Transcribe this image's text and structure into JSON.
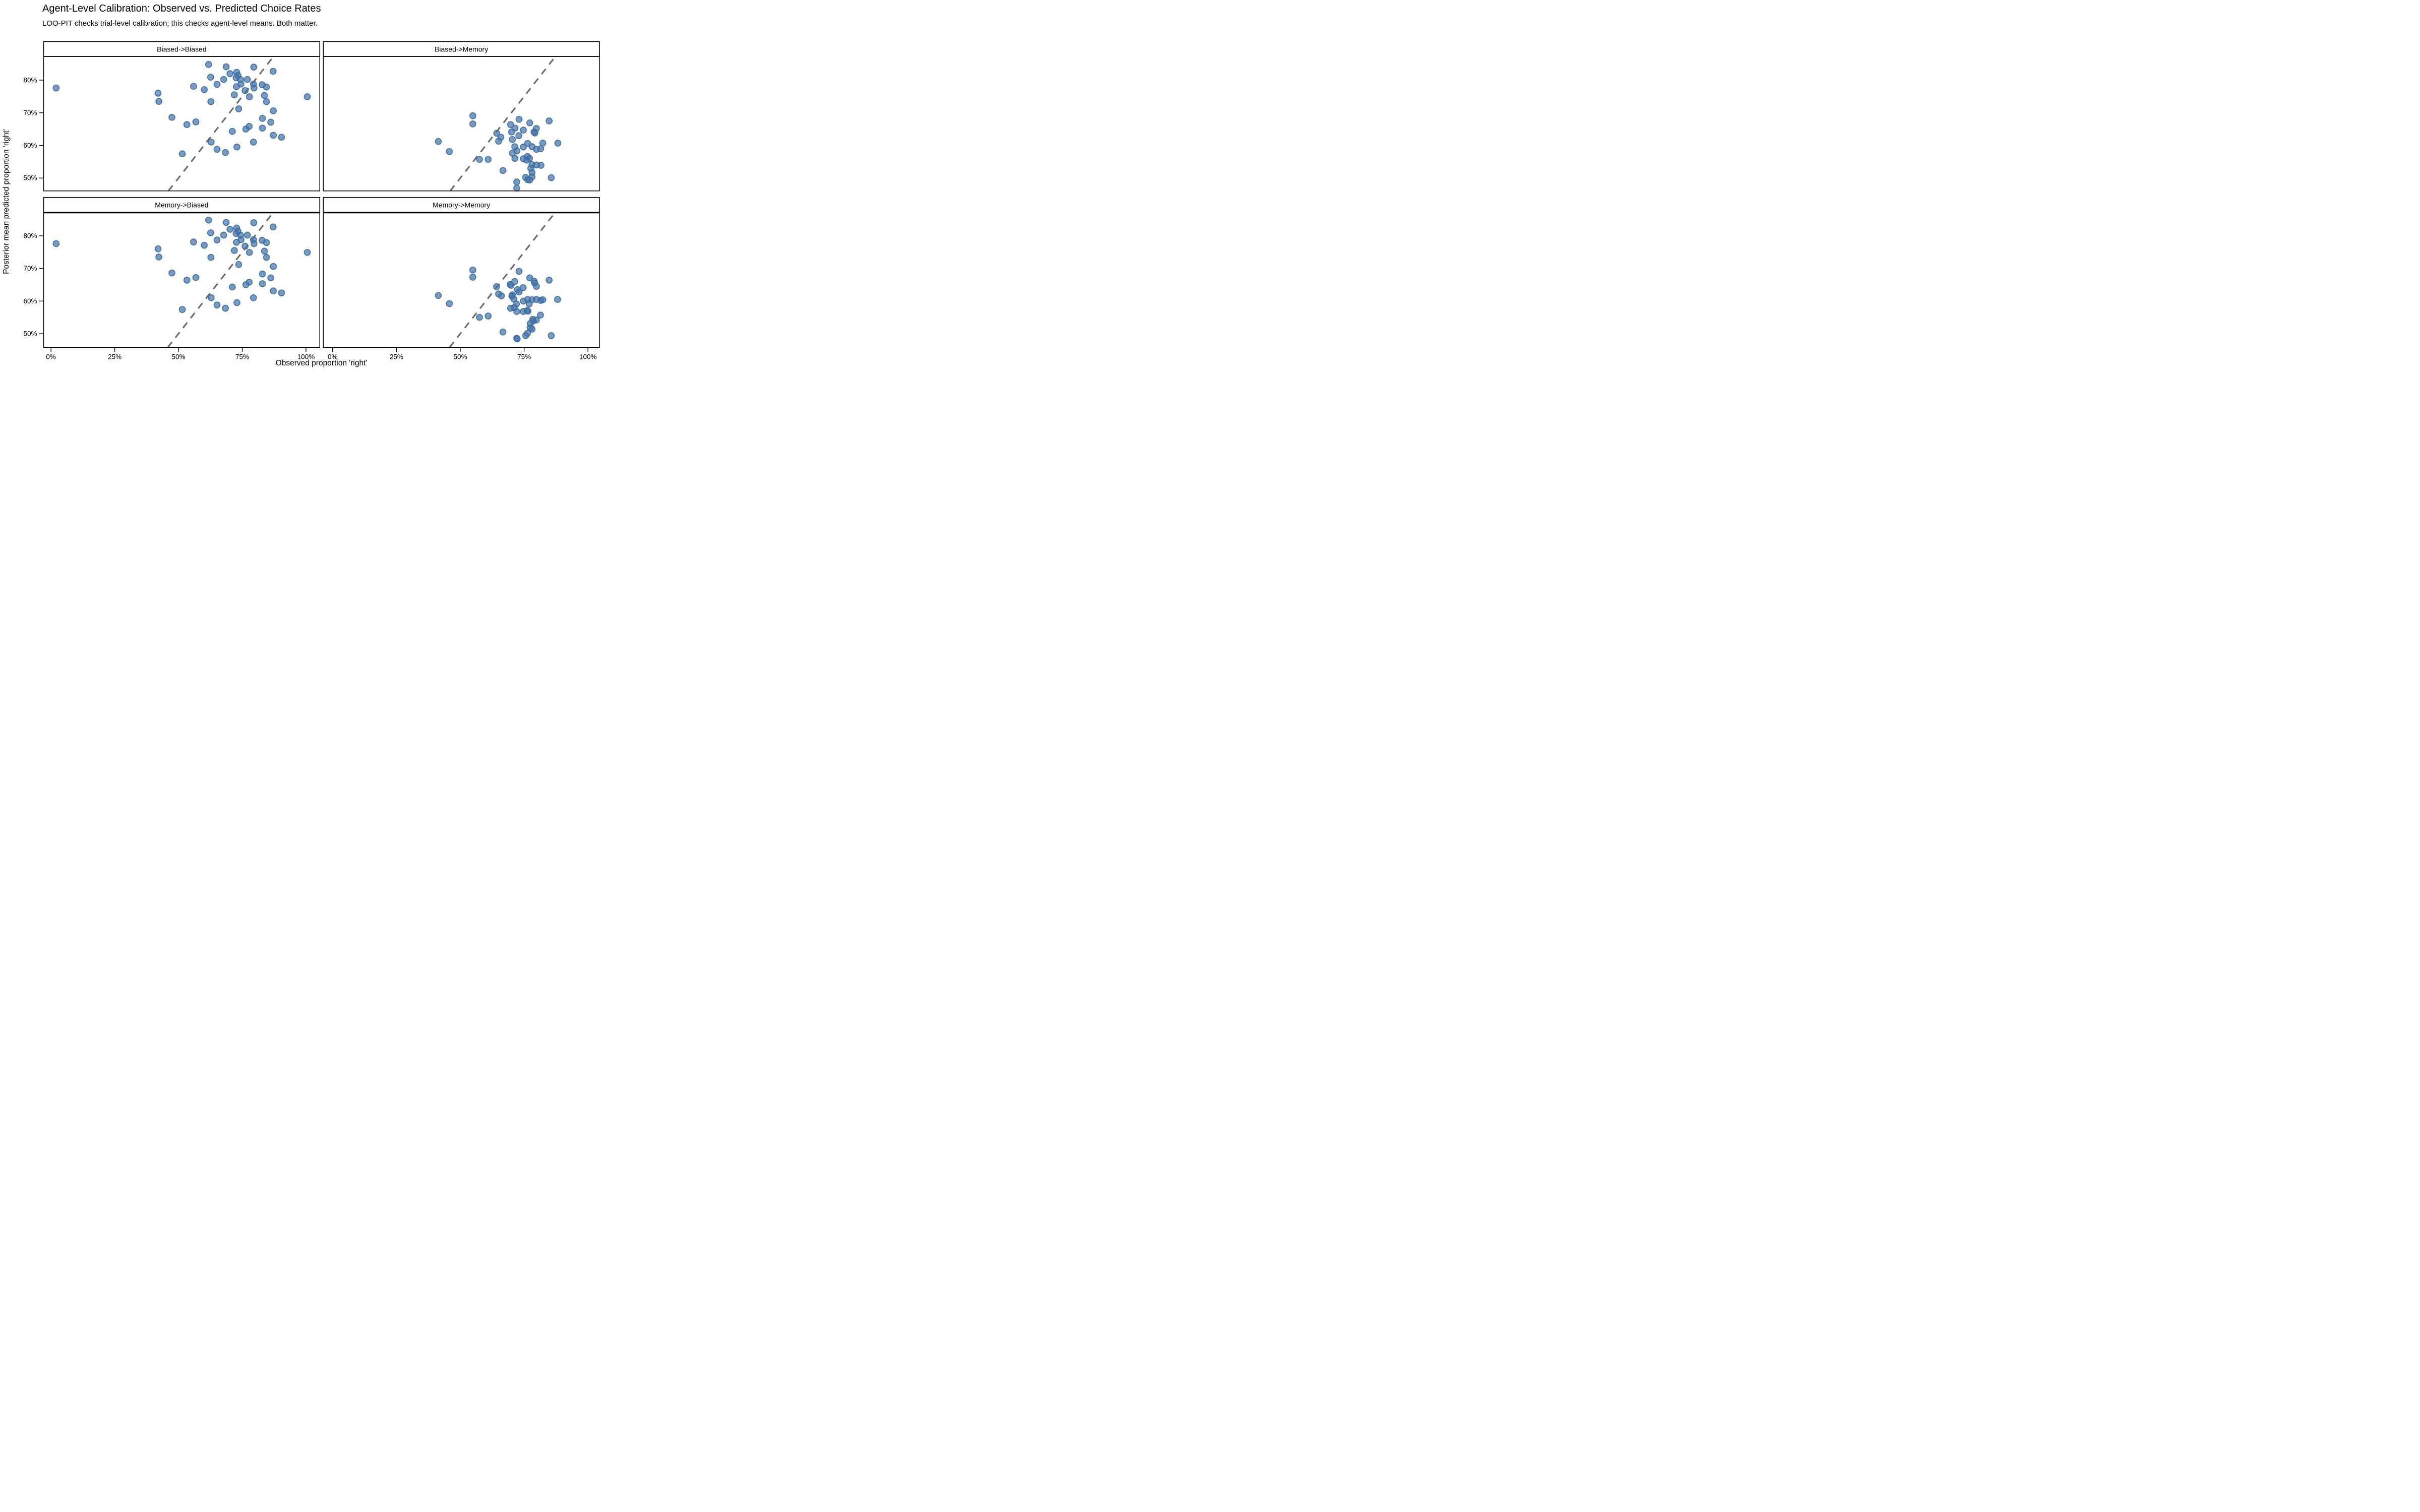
{
  "header": {
    "title": "Agent-Level Calibration: Observed vs. Predicted Choice Rates",
    "subtitle": "LOO-PIT checks trial-level calibration; this checks agent-level means. Both matter."
  },
  "axes": {
    "x_title": "Observed proportion 'right'",
    "y_title": "Posterior mean predicted proportion 'right'"
  },
  "colors": {
    "background": "#ffffff",
    "text": "#000000",
    "border": "#000000",
    "strip_bg": "#ffffff",
    "point_fill": "#4673A5",
    "point_fill_opacity": 0.72,
    "point_stroke": "#3A6CA3",
    "identity_dash": "#6A6A6A"
  },
  "chart_data": {
    "type": "scatter",
    "title": "Agent-Level Calibration: Observed vs. Predicted Choice Rates",
    "subtitle": "LOO-PIT checks trial-level calibration; this checks agent-level means. Both matter.",
    "xlabel": "Observed proportion 'right'",
    "ylabel": "Posterior mean predicted proportion 'right'",
    "grid": false,
    "legend": "none",
    "identity_line": true,
    "units": "percent",
    "x_ticks_pct": [
      0,
      25,
      50,
      75,
      100
    ],
    "y_ticks_pct": [
      50,
      60,
      70,
      80
    ],
    "x_tick_labels": [
      "0%",
      "25%",
      "50%",
      "75%",
      "100%"
    ],
    "y_tick_labels": [
      "50%",
      "60%",
      "70%",
      "80%"
    ],
    "x_domain": [
      -3,
      105.5
    ],
    "y_domain": [
      45.8,
      87.3
    ],
    "facets": [
      {
        "label": "Biased->Biased",
        "points": [
          [
            2,
            77.6
          ],
          [
            42,
            76
          ],
          [
            42.3,
            73.5
          ],
          [
            47.4,
            68.6
          ],
          [
            51.5,
            57.4
          ],
          [
            61.8,
            84.8
          ],
          [
            68.7,
            84.1
          ],
          [
            79.5,
            84
          ],
          [
            87.1,
            82.7
          ],
          [
            70.2,
            82
          ],
          [
            72.8,
            82.4
          ],
          [
            73.3,
            81.4
          ],
          [
            62.6,
            80.9
          ],
          [
            72.6,
            80.7
          ],
          [
            74.3,
            80.2
          ],
          [
            77,
            80.2
          ],
          [
            67.7,
            80.2
          ],
          [
            65.1,
            78.7
          ],
          [
            74.5,
            78.8
          ],
          [
            55.9,
            78.1
          ],
          [
            72.7,
            78
          ],
          [
            79.4,
            78.8
          ],
          [
            79.6,
            77.6
          ],
          [
            82.8,
            78.6
          ],
          [
            84.5,
            77.9
          ],
          [
            60.1,
            77.1
          ],
          [
            76.1,
            76.8
          ],
          [
            71.9,
            75.5
          ],
          [
            77.8,
            74.9
          ],
          [
            83.7,
            75.3
          ],
          [
            100.5,
            74.9
          ],
          [
            84.5,
            73.4
          ],
          [
            62.7,
            73.4
          ],
          [
            73.6,
            71.2
          ],
          [
            87.2,
            70.6
          ],
          [
            82.9,
            68.3
          ],
          [
            86.2,
            67.1
          ],
          [
            53.3,
            66.4
          ],
          [
            56.8,
            67.2
          ],
          [
            77.7,
            65.8
          ],
          [
            76.4,
            65
          ],
          [
            82.9,
            65.3
          ],
          [
            71.1,
            64.3
          ],
          [
            87.2,
            63.1
          ],
          [
            90.4,
            62.5
          ],
          [
            79.4,
            61
          ],
          [
            62.8,
            61
          ],
          [
            65.1,
            58.8
          ],
          [
            72.9,
            59.5
          ],
          [
            68.4,
            57.8
          ]
        ]
      },
      {
        "label": "Biased->Memory",
        "points": [
          [
            54.9,
            69.1
          ],
          [
            54.9,
            66.6
          ],
          [
            41.4,
            61.2
          ],
          [
            45.7,
            58.1
          ],
          [
            64.3,
            63.7
          ],
          [
            65.9,
            62.5
          ],
          [
            65,
            61.3
          ],
          [
            57.5,
            55.7
          ],
          [
            60.9,
            55.7
          ],
          [
            66.7,
            52.3
          ],
          [
            73,
            68
          ],
          [
            84.8,
            67.5
          ],
          [
            77.2,
            66.9
          ],
          [
            69.7,
            66.4
          ],
          [
            71.4,
            65.3
          ],
          [
            79.8,
            65.2
          ],
          [
            78.9,
            64.1
          ],
          [
            79.2,
            63.8
          ],
          [
            74.7,
            64.7
          ],
          [
            70.1,
            64.1
          ],
          [
            72.9,
            63
          ],
          [
            70.4,
            61.8
          ],
          [
            71.3,
            59.6
          ],
          [
            70.4,
            57.6
          ],
          [
            72.2,
            58.3
          ],
          [
            71.4,
            56
          ],
          [
            74.7,
            59.5
          ],
          [
            76.4,
            60.6
          ],
          [
            78.1,
            59.6
          ],
          [
            79.8,
            58.8
          ],
          [
            81.5,
            59
          ],
          [
            82.3,
            60.7
          ],
          [
            88.2,
            60.7
          ],
          [
            74.7,
            55.9
          ],
          [
            76.3,
            56.6
          ],
          [
            77.1,
            56
          ],
          [
            76,
            55.5
          ],
          [
            78.1,
            54.1
          ],
          [
            79.8,
            54
          ],
          [
            81.6,
            53.9
          ],
          [
            77.6,
            53
          ],
          [
            78.1,
            51.7
          ],
          [
            78.1,
            50.4
          ],
          [
            75.6,
            50.2
          ],
          [
            76.4,
            49.5
          ],
          [
            77.2,
            49.4
          ],
          [
            85.6,
            50.1
          ],
          [
            72.1,
            48.8
          ],
          [
            72.1,
            46.9
          ]
        ]
      },
      {
        "label": "Memory->Biased",
        "points": [
          [
            2,
            77.6
          ],
          [
            42,
            76
          ],
          [
            42.3,
            73.5
          ],
          [
            47.4,
            68.6
          ],
          [
            51.5,
            57.4
          ],
          [
            61.8,
            84.8
          ],
          [
            68.7,
            84.1
          ],
          [
            79.5,
            84
          ],
          [
            87.1,
            82.7
          ],
          [
            70.2,
            82
          ],
          [
            72.8,
            82.4
          ],
          [
            73.3,
            81.4
          ],
          [
            62.6,
            80.9
          ],
          [
            72.6,
            80.7
          ],
          [
            74.3,
            80.2
          ],
          [
            77,
            80.2
          ],
          [
            67.7,
            80.2
          ],
          [
            65.1,
            78.7
          ],
          [
            74.5,
            78.8
          ],
          [
            55.9,
            78.1
          ],
          [
            72.7,
            78
          ],
          [
            79.4,
            78.8
          ],
          [
            79.6,
            77.6
          ],
          [
            82.8,
            78.6
          ],
          [
            84.5,
            77.9
          ],
          [
            60.1,
            77.1
          ],
          [
            76.1,
            76.8
          ],
          [
            71.9,
            75.5
          ],
          [
            77.8,
            74.9
          ],
          [
            83.7,
            75.3
          ],
          [
            100.5,
            74.9
          ],
          [
            84.5,
            73.4
          ],
          [
            62.7,
            73.4
          ],
          [
            73.6,
            71.2
          ],
          [
            87.2,
            70.6
          ],
          [
            82.9,
            68.3
          ],
          [
            86.2,
            67.1
          ],
          [
            53.3,
            66.4
          ],
          [
            56.8,
            67.2
          ],
          [
            77.7,
            65.8
          ],
          [
            76.4,
            65
          ],
          [
            82.9,
            65.3
          ],
          [
            71.1,
            64.3
          ],
          [
            87.2,
            63.1
          ],
          [
            90.4,
            62.5
          ],
          [
            79.4,
            61
          ],
          [
            62.8,
            61
          ],
          [
            65.1,
            58.8
          ],
          [
            72.9,
            59.5
          ],
          [
            68.4,
            57.8
          ]
        ]
      },
      {
        "label": "Memory->Memory",
        "points": [
          [
            54.9,
            69.5
          ],
          [
            54.9,
            67.3
          ],
          [
            41.4,
            61.7
          ],
          [
            45.7,
            59.2
          ],
          [
            64.2,
            64.4
          ],
          [
            65,
            62.2
          ],
          [
            66.1,
            61.6
          ],
          [
            57.5,
            55
          ],
          [
            60.9,
            55.4
          ],
          [
            66.7,
            50.5
          ],
          [
            73,
            69.1
          ],
          [
            77.2,
            67.1
          ],
          [
            84.8,
            66.4
          ],
          [
            71.3,
            66
          ],
          [
            69.5,
            65.1
          ],
          [
            69.9,
            64.8
          ],
          [
            78.9,
            66.1
          ],
          [
            79.1,
            65.5
          ],
          [
            79.8,
            64.5
          ],
          [
            74.6,
            64.1
          ],
          [
            72.4,
            63.5
          ],
          [
            73,
            62.8
          ],
          [
            70.4,
            61.9
          ],
          [
            70.2,
            61.5
          ],
          [
            71,
            60.6
          ],
          [
            72,
            59.1
          ],
          [
            74.7,
            60
          ],
          [
            76.4,
            60.5
          ],
          [
            78.1,
            60.4
          ],
          [
            79.8,
            60.5
          ],
          [
            81.5,
            60.2
          ],
          [
            82.3,
            60.4
          ],
          [
            88.1,
            60.5
          ],
          [
            77,
            59.1
          ],
          [
            69.7,
            57.8
          ],
          [
            71.1,
            58
          ],
          [
            72.1,
            56.8
          ],
          [
            74.7,
            56.8
          ],
          [
            76.2,
            57.1
          ],
          [
            76.5,
            56.9
          ],
          [
            81.4,
            55.7
          ],
          [
            78.4,
            54.4
          ],
          [
            78.6,
            53.9
          ],
          [
            79.8,
            54.2
          ],
          [
            77.4,
            53.1
          ],
          [
            77.4,
            51.8
          ],
          [
            78.1,
            51.4
          ],
          [
            76.3,
            50.1
          ],
          [
            75.6,
            49.4
          ],
          [
            72.1,
            48.6
          ],
          [
            72.3,
            48.4
          ],
          [
            85.6,
            49.4
          ]
        ]
      }
    ]
  }
}
